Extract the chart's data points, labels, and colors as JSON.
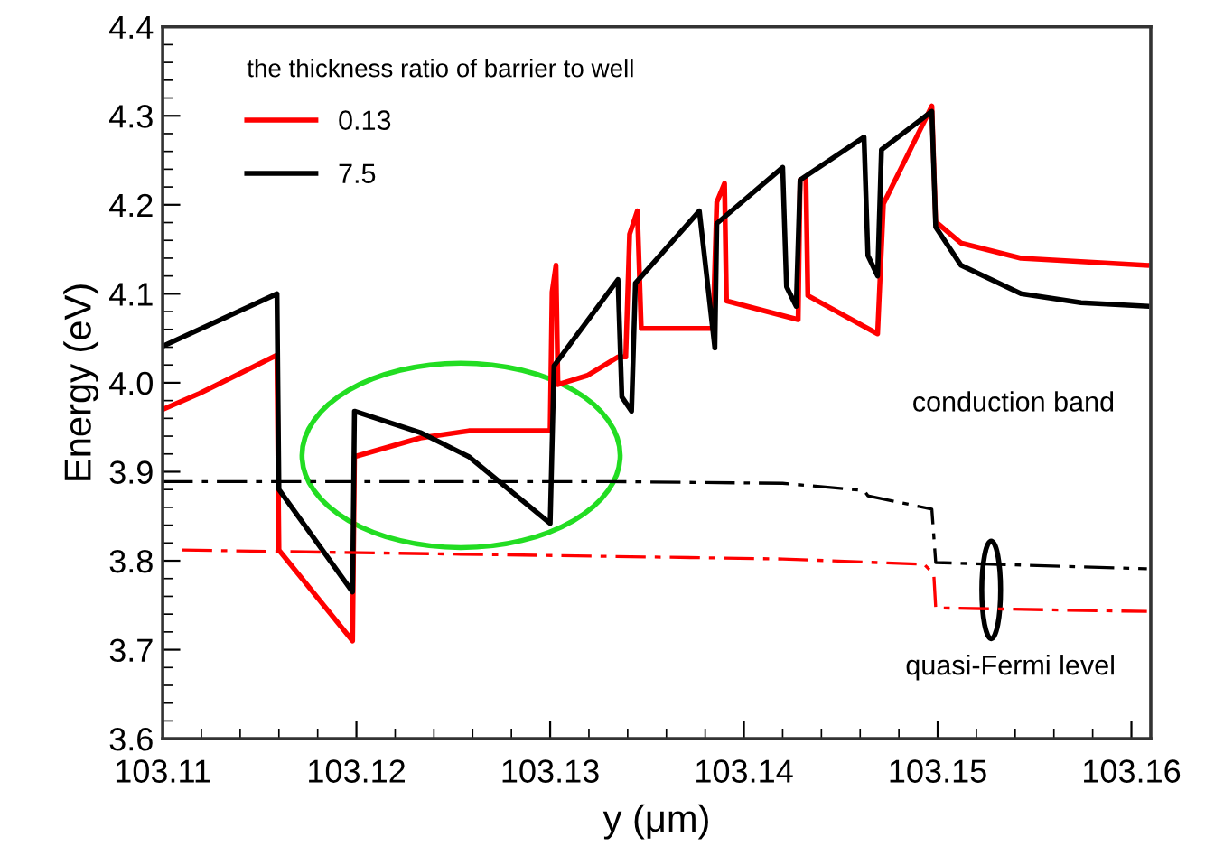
{
  "chart_data": {
    "type": "line",
    "xlabel": "y (μm)",
    "ylabel": "Energy (eV)",
    "legend_title": "the thickness ratio of barrier to well",
    "legend": "top left",
    "grid": false,
    "marker": "none",
    "xlim": [
      103.11,
      103.161
    ],
    "xticks": [
      103.11,
      103.12,
      103.13,
      103.14,
      103.15,
      103.16
    ],
    "ylim": [
      3.6,
      4.4
    ],
    "yticks": [
      3.6,
      3.7,
      3.8,
      3.9,
      {
        "value": 4.0,
        "label": "4.0"
      },
      4.1,
      4.2,
      4.3,
      4.4
    ],
    "series": [
      {
        "name": "0.13",
        "color": "#ff0000",
        "line_style": "solid",
        "x": [
          103.11,
          103.1119,
          103.1159,
          103.116,
          103.1198,
          103.1199,
          103.1233,
          103.1258,
          103.13,
          103.1301,
          103.1303,
          103.1304,
          103.1319,
          103.1335,
          103.1339,
          103.1341,
          103.1345,
          103.1347,
          103.1384,
          103.1386,
          103.139,
          103.1391,
          103.1428,
          103.1429,
          103.1432,
          103.1433,
          103.1469,
          103.1472,
          103.1497,
          103.1499,
          103.1512,
          103.1543,
          103.1608
        ],
        "values": [
          3.97,
          3.988,
          4.031,
          3.812,
          3.71,
          3.917,
          3.938,
          3.946,
          3.946,
          4.102,
          4.132,
          3.998,
          4.008,
          4.029,
          4.029,
          4.167,
          4.193,
          4.061,
          4.061,
          4.203,
          4.224,
          4.092,
          4.071,
          4.228,
          4.23,
          4.098,
          4.055,
          4.201,
          4.311,
          4.181,
          4.157,
          4.14,
          4.132
        ]
      },
      {
        "name": "7.5",
        "color": "#000000",
        "line_style": "solid",
        "x": [
          103.11,
          103.1159,
          103.116,
          103.1198,
          103.1199,
          103.1233,
          103.1258,
          103.13,
          103.1302,
          103.1335,
          103.1337,
          103.1342,
          103.1344,
          103.1377,
          103.1385,
          103.1386,
          103.142,
          103.1422,
          103.1427,
          103.1429,
          103.1462,
          103.1464,
          103.1469,
          103.1471,
          103.1497,
          103.1499,
          103.1512,
          103.1543,
          103.1574,
          103.1608
        ],
        "values": [
          4.041,
          4.1,
          3.88,
          3.765,
          3.968,
          3.944,
          3.917,
          3.842,
          4.019,
          4.116,
          3.984,
          3.968,
          4.112,
          4.193,
          4.039,
          4.179,
          4.242,
          4.108,
          4.086,
          4.228,
          4.276,
          4.143,
          4.12,
          4.262,
          4.305,
          4.175,
          4.132,
          4.1,
          4.09,
          4.086
        ]
      },
      {
        "color": "#000000",
        "line_style": "dashed",
        "x": [
          103.11,
          103.1329,
          103.142,
          103.1462,
          103.1464,
          103.1497,
          103.1499,
          103.1608
        ],
        "values": [
          3.889,
          3.889,
          3.887,
          3.879,
          3.873,
          3.858,
          3.798,
          3.791
        ]
      },
      {
        "color": "#ff0000",
        "line_style": "dashed",
        "x": [
          103.111,
          103.142,
          103.1493,
          103.1498,
          103.1499,
          103.1608
        ],
        "values": [
          3.812,
          3.802,
          3.796,
          3.785,
          3.747,
          3.743
        ]
      }
    ],
    "annotations": [
      "conduction band",
      "quasi-Fermi level"
    ]
  }
}
